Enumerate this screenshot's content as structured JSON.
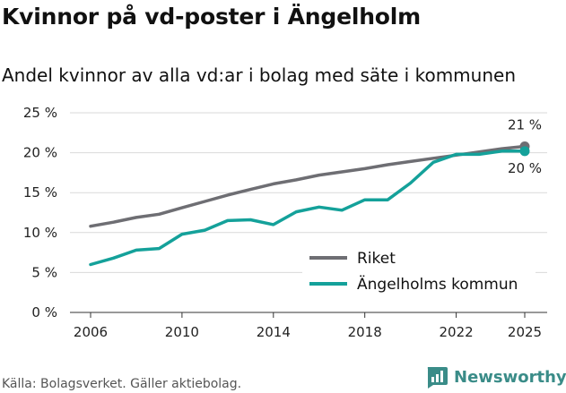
{
  "header": {
    "title": "Kvinnor på vd-poster i Ängelholm",
    "subtitle": "Andel kvinnor av alla vd:ar i bolag med säte i kommunen"
  },
  "footer": {
    "source": "Källa: Bolagsverket. Gäller aktiebolag.",
    "brand": "Newsworthy"
  },
  "colors": {
    "riket": "#6e6e73",
    "kommun": "#14a19a",
    "grid": "#d9d9d9",
    "brand": "#3a8c88"
  },
  "chart_data": {
    "type": "line",
    "title": "Kvinnor på vd-poster i Ängelholm",
    "subtitle": "Andel kvinnor av alla vd:ar i bolag med säte i kommunen",
    "xlabel": "",
    "ylabel": "",
    "x": [
      2006,
      2007,
      2008,
      2009,
      2010,
      2011,
      2012,
      2013,
      2014,
      2015,
      2016,
      2017,
      2018,
      2019,
      2020,
      2021,
      2022,
      2023,
      2024,
      2025
    ],
    "xticks": [
      2006,
      2010,
      2014,
      2018,
      2022,
      2025
    ],
    "yticks": [
      0,
      5,
      10,
      15,
      20,
      25
    ],
    "ytick_labels": [
      "0 %",
      "5 %",
      "10 %",
      "15 %",
      "20 %",
      "25 %"
    ],
    "ylim": [
      0,
      25
    ],
    "grid": true,
    "legend_position": "bottom-right",
    "series": [
      {
        "name": "Riket",
        "color_key": "riket",
        "values": [
          10.8,
          11.3,
          11.9,
          12.3,
          13.1,
          13.9,
          14.7,
          15.4,
          16.1,
          16.6,
          17.2,
          17.6,
          18.0,
          18.5,
          18.9,
          19.3,
          19.7,
          20.1,
          20.5,
          20.8
        ],
        "end_label": "21 %"
      },
      {
        "name": "Ängelholms kommun",
        "color_key": "kommun",
        "values": [
          6.0,
          6.8,
          7.8,
          8.0,
          9.8,
          10.3,
          11.5,
          11.6,
          11.0,
          12.6,
          13.2,
          12.8,
          14.1,
          14.1,
          16.2,
          18.8,
          19.8,
          19.8,
          20.2,
          20.2
        ],
        "end_label": "20 %"
      }
    ]
  }
}
